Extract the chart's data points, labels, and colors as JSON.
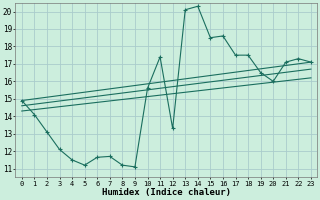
{
  "xlabel": "Humidex (Indice chaleur)",
  "background_color": "#cceedd",
  "grid_color": "#aacccc",
  "line_color": "#1a6e5e",
  "xlim": [
    -0.5,
    23.5
  ],
  "ylim": [
    10.5,
    20.5
  ],
  "xticks": [
    0,
    1,
    2,
    3,
    4,
    5,
    6,
    7,
    8,
    9,
    10,
    11,
    12,
    13,
    14,
    15,
    16,
    17,
    18,
    19,
    20,
    21,
    22,
    23
  ],
  "yticks": [
    11,
    12,
    13,
    14,
    15,
    16,
    17,
    18,
    19,
    20
  ],
  "line1_x": [
    0,
    1,
    2,
    3,
    4,
    5,
    6,
    7,
    8,
    9,
    10,
    11,
    12,
    13,
    14,
    15,
    16,
    17,
    18,
    19,
    20,
    21,
    22,
    23
  ],
  "line1_y": [
    14.9,
    14.1,
    13.1,
    12.1,
    11.5,
    11.2,
    11.65,
    11.7,
    11.2,
    11.1,
    15.6,
    17.4,
    13.3,
    20.1,
    20.3,
    18.5,
    18.6,
    17.5,
    17.5,
    16.5,
    16.0,
    17.1,
    17.3,
    17.1
  ],
  "line2_x": [
    0,
    23
  ],
  "line2_y": [
    14.9,
    17.1
  ],
  "line3_x": [
    0,
    23
  ],
  "line3_y": [
    14.6,
    16.7
  ],
  "line4_x": [
    0,
    23
  ],
  "line4_y": [
    14.3,
    16.2
  ]
}
